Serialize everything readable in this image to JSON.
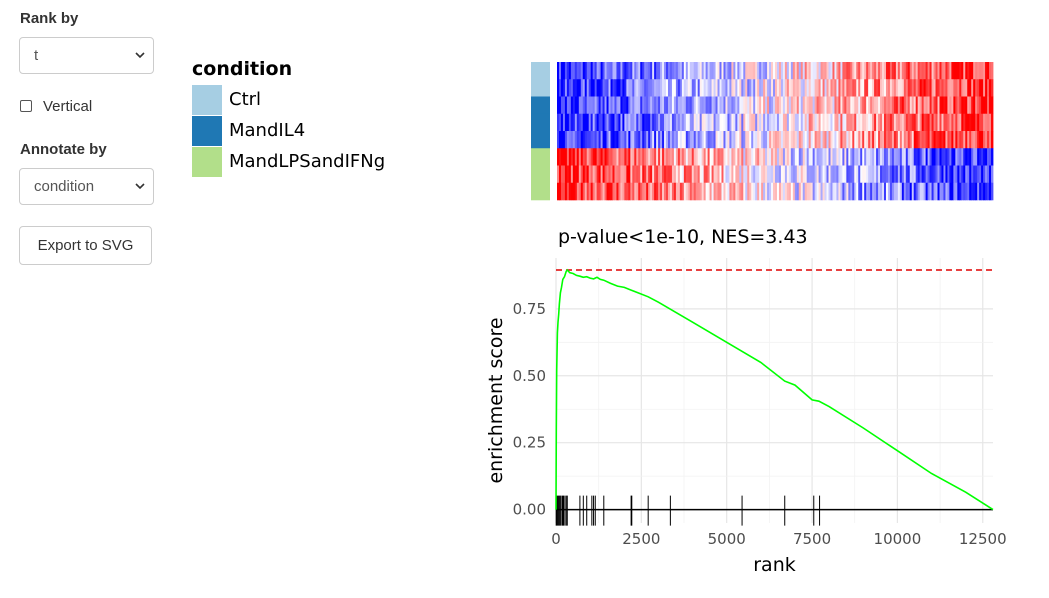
{
  "controls": {
    "rank_by": {
      "label": "Rank by",
      "value": "t"
    },
    "vertical": {
      "label": "Vertical",
      "checked": false
    },
    "annotate_by": {
      "label": "Annotate by",
      "value": "condition"
    },
    "export_label": "Export to SVG"
  },
  "legend": {
    "title": "condition",
    "items": [
      {
        "label": "Ctrl",
        "color": "#a6cee3"
      },
      {
        "label": "MandIL4",
        "color": "#1f78b4"
      },
      {
        "label": "MandLPSandIFNg",
        "color": "#b2df8a"
      }
    ]
  },
  "heatmap": {
    "sample_groups": [
      "Ctrl",
      "Ctrl",
      "MandIL4",
      "MandIL4",
      "MandIL4",
      "MandLPSandIFNg",
      "MandLPSandIFNg",
      "MandLPSandIFNg"
    ],
    "low_color": "#0000ff",
    "mid_color": "#ffffff",
    "high_color": "#ff0000"
  },
  "chart_data": {
    "type": "line",
    "title": "p-value<1e-10, NES=3.43",
    "xlabel": "rank",
    "ylabel": "enrichment score",
    "xlim": [
      0,
      12800
    ],
    "ylim": [
      -0.05,
      0.94
    ],
    "x_ticks": [
      0,
      2500,
      5000,
      7500,
      10000,
      12500
    ],
    "y_ticks": [
      0.0,
      0.25,
      0.5,
      0.75
    ],
    "x_tick_labels": [
      "0",
      "2500",
      "5000",
      "7500",
      "10000",
      "12500"
    ],
    "y_tick_labels": [
      "0.00",
      "0.25",
      "0.50",
      "0.75"
    ],
    "series": [
      {
        "color": "#00ff00",
        "x": [
          0,
          10,
          20,
          40,
          60,
          80,
          100,
          130,
          160,
          200,
          250,
          300,
          330,
          400,
          500,
          600,
          700,
          800,
          900,
          1000,
          1100,
          1200,
          1300,
          1400,
          1600,
          1800,
          2000,
          2200,
          2400,
          2700,
          3000,
          4000,
          5000,
          6000,
          6700,
          7000,
          7500,
          7700,
          8000,
          9000,
          10000,
          11000,
          12000,
          12800
        ],
        "y": [
          0.0,
          0.3,
          0.52,
          0.66,
          0.7,
          0.73,
          0.77,
          0.81,
          0.83,
          0.86,
          0.87,
          0.89,
          0.895,
          0.885,
          0.882,
          0.875,
          0.872,
          0.868,
          0.87,
          0.865,
          0.862,
          0.868,
          0.86,
          0.857,
          0.845,
          0.835,
          0.83,
          0.82,
          0.81,
          0.795,
          0.775,
          0.7,
          0.625,
          0.55,
          0.48,
          0.465,
          0.41,
          0.405,
          0.385,
          0.305,
          0.22,
          0.135,
          0.065,
          0.0
        ]
      }
    ],
    "max_es": 0.895,
    "hits": [
      5,
      30,
      60,
      90,
      120,
      150,
      190,
      220,
      260,
      300,
      330,
      700,
      800,
      900,
      1050,
      1100,
      1150,
      1400,
      2200,
      2220,
      2700,
      3350,
      5450,
      6700,
      7550,
      7720
    ]
  }
}
